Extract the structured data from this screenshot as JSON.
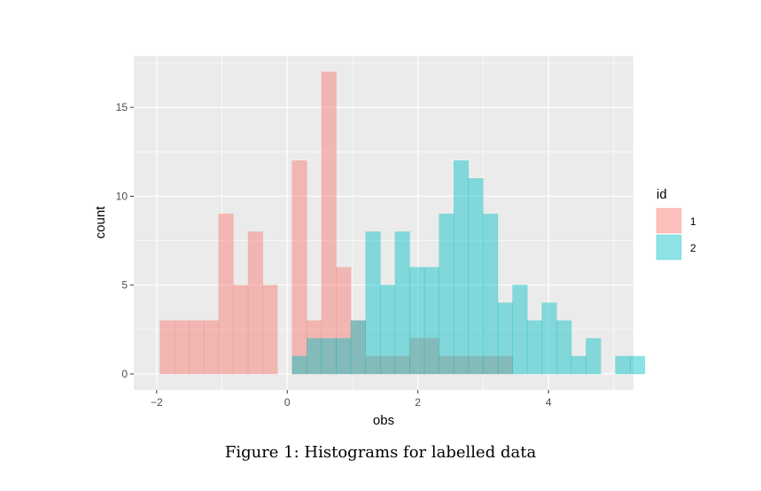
{
  "chart_data": {
    "type": "histogram",
    "xlabel": "obs",
    "ylabel": "count",
    "xlim": [
      -2.35,
      5.3
    ],
    "ylim": [
      -0.9,
      17.9
    ],
    "x_ticks": [
      -2,
      0,
      2,
      4
    ],
    "x_tick_labels": [
      "−2",
      "0",
      "2",
      "4"
    ],
    "y_ticks": [
      0,
      5,
      10,
      15
    ],
    "y_tick_labels": [
      "0",
      "5",
      "10",
      "15"
    ],
    "grid": true,
    "legend_position": "right",
    "bin_edges_start": -1.95,
    "bin_width": 0.225,
    "series": [
      {
        "name": "1",
        "color": "#f8766d",
        "counts": [
          3,
          3,
          3,
          3,
          9,
          5,
          8,
          5,
          0,
          12,
          3,
          17,
          6,
          3,
          1,
          1,
          1,
          2,
          2,
          1,
          1,
          1,
          1,
          1,
          0,
          0,
          0,
          0,
          0,
          0
        ]
      },
      {
        "name": "2",
        "color": "#00bfc4",
        "counts": [
          0,
          0,
          0,
          0,
          0,
          0,
          0,
          0,
          0,
          1,
          2,
          2,
          2,
          3,
          8,
          5,
          8,
          6,
          6,
          9,
          12,
          11,
          9,
          4,
          5,
          3,
          4,
          3,
          1,
          2,
          0,
          1,
          1
        ]
      }
    ]
  },
  "legend": {
    "title": "id",
    "items": [
      {
        "label": "1",
        "color": "#f8766d"
      },
      {
        "label": "2",
        "color": "#00bfc4"
      }
    ]
  },
  "caption": "Figure 1: Histograms for labelled data"
}
